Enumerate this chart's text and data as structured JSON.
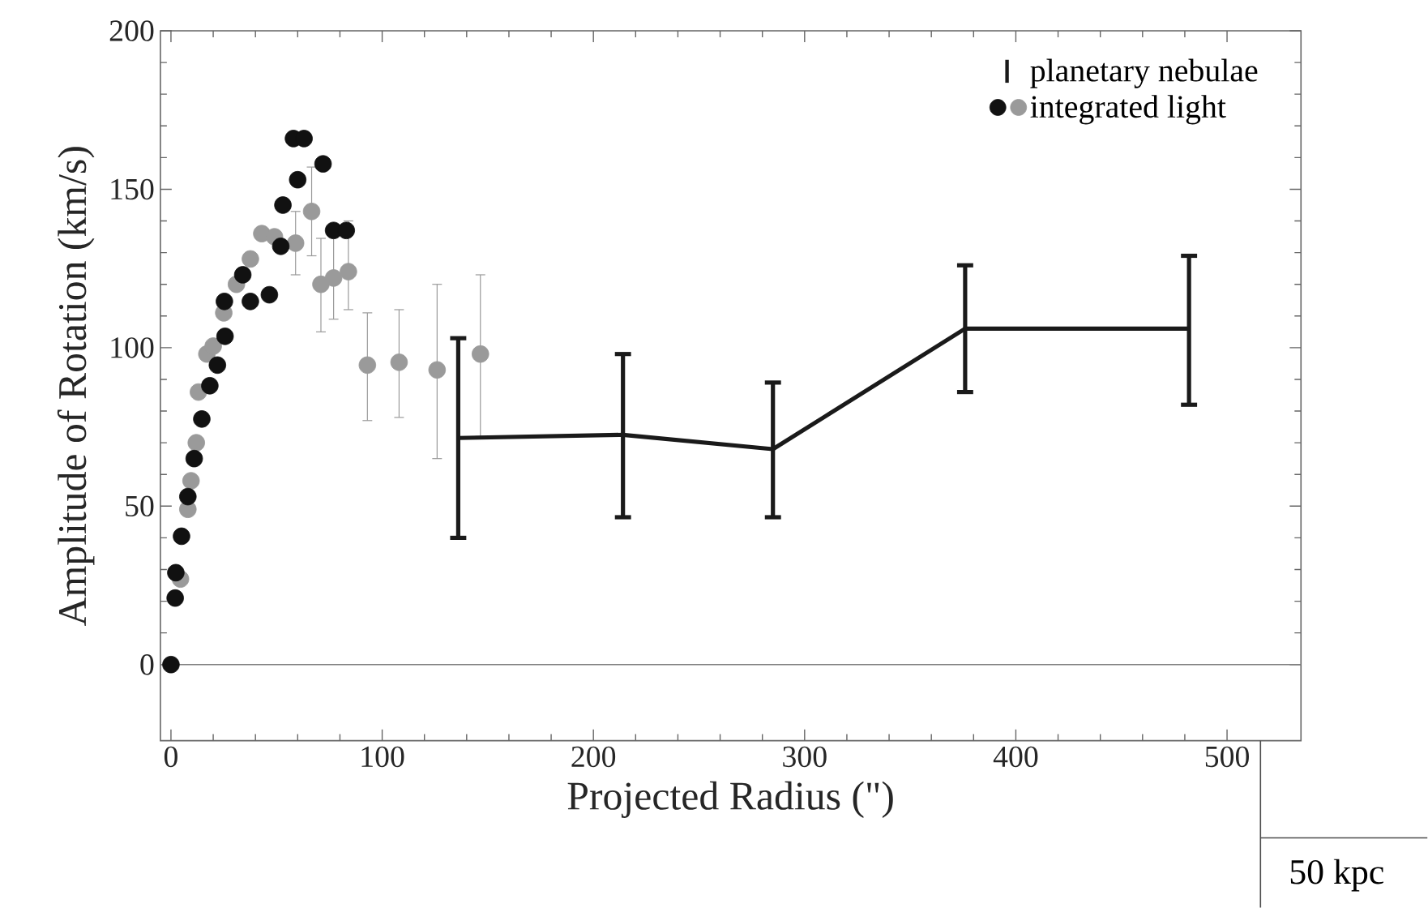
{
  "chart_data": {
    "type": "scatter",
    "xlabel": "Projected Radius (\")",
    "ylabel": "Amplitude of Rotation (km/s)",
    "xlim": [
      -5,
      535
    ],
    "ylim": [
      -24,
      200
    ],
    "xticks": [
      0,
      100,
      200,
      300,
      400,
      500
    ],
    "yticks": [
      0,
      50,
      100,
      150,
      200
    ],
    "legend": "top right",
    "marker": "circle",
    "ref_lines": [
      {
        "axis": "y",
        "value": 0,
        "color": "#808080"
      }
    ],
    "annotations": [
      "50 kpc"
    ],
    "series": [
      {
        "name": "integrated light",
        "color": "#9a9a9a",
        "x": [
          4.5,
          8,
          9.5,
          12,
          13,
          17,
          20,
          25,
          31,
          37.6,
          43,
          49,
          59,
          66.6,
          71,
          77,
          84,
          93,
          108,
          126,
          146.5
        ],
        "values": [
          27,
          49,
          58,
          70,
          86,
          98,
          100.5,
          111,
          120,
          128,
          136,
          135,
          133,
          143,
          120,
          122,
          124,
          94.5,
          95.4,
          93,
          98
        ],
        "errors": [
          null,
          null,
          null,
          null,
          null,
          null,
          null,
          null,
          null,
          null,
          null,
          null,
          [
            123,
            143
          ],
          [
            129,
            157
          ],
          [
            105,
            134.5
          ],
          [
            109,
            138
          ],
          [
            112,
            140
          ],
          [
            77,
            111
          ],
          [
            78,
            112
          ],
          [
            65,
            120
          ],
          [
            72,
            123
          ]
        ]
      },
      {
        "color": "#111111",
        "x": [
          0,
          2,
          2.3,
          5,
          8,
          11,
          14.6,
          18.4,
          22,
          25.6,
          25.3,
          34,
          37.6,
          46.6,
          52,
          53,
          60,
          58,
          63,
          72,
          77,
          83
        ],
        "values": [
          0,
          21,
          29,
          40.5,
          53,
          65,
          77.5,
          88,
          94.5,
          103.6,
          114.6,
          123,
          114.6,
          116.7,
          132,
          145,
          153,
          166,
          166,
          158,
          137,
          137
        ]
      },
      {
        "type": "line",
        "name": "planetary nebulae",
        "color": "#1a1a1a",
        "marker": "none",
        "x": [
          136,
          214,
          285,
          376,
          482
        ],
        "values": [
          71.5,
          72.5,
          68,
          106,
          106
        ],
        "errors": [
          [
            40,
            103
          ],
          [
            46.5,
            98
          ],
          [
            46.5,
            89
          ],
          [
            86,
            126
          ],
          [
            82,
            129
          ]
        ]
      }
    ]
  }
}
